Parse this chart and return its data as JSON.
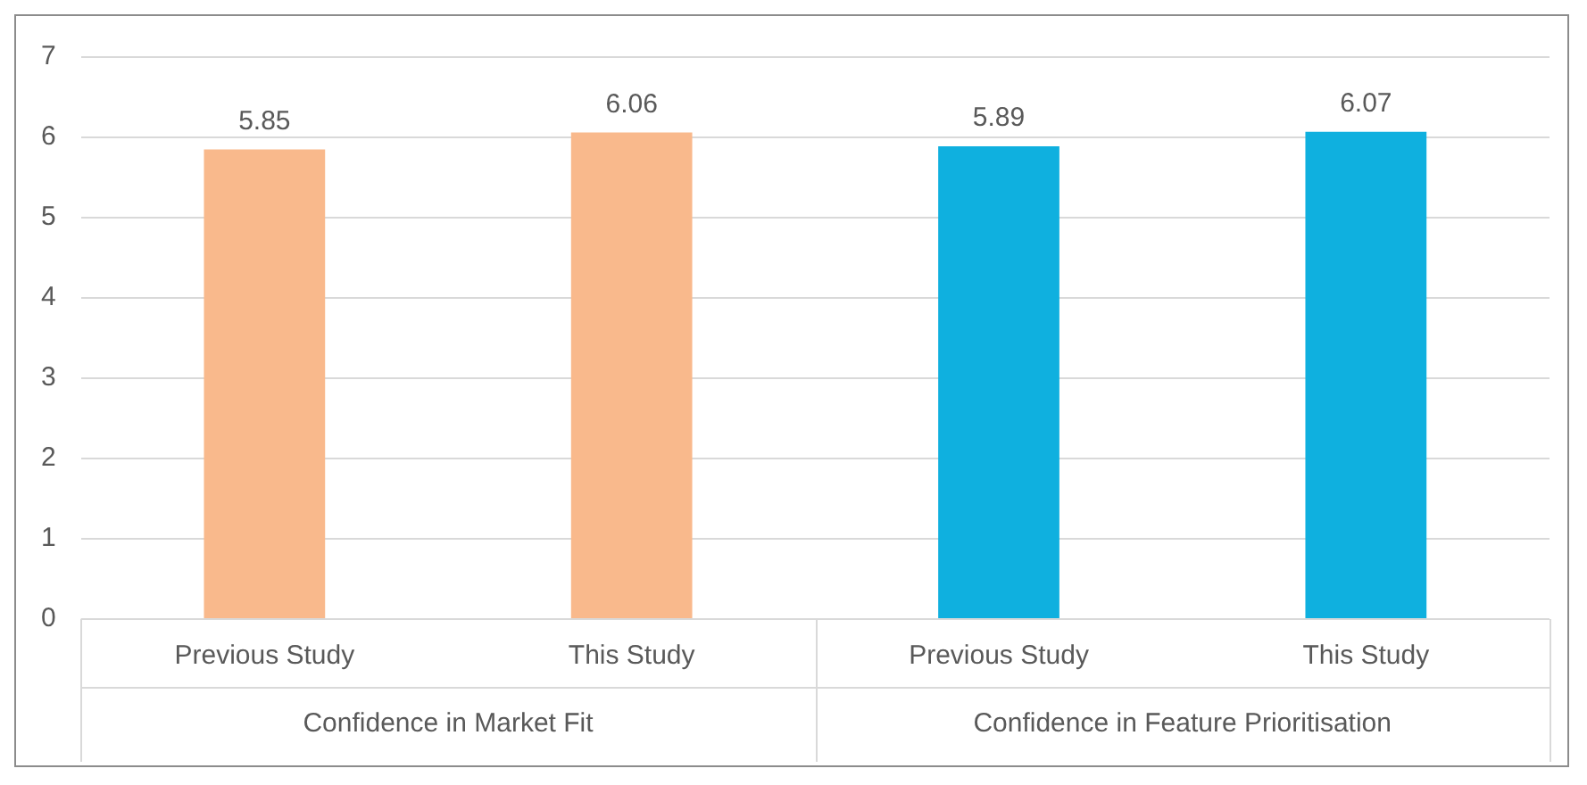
{
  "chart_data": {
    "type": "bar",
    "categories": [
      "Previous Study",
      "This Study",
      "Previous Study",
      "This Study"
    ],
    "values": [
      5.85,
      6.06,
      5.89,
      6.07
    ],
    "colors": [
      "#f9b98c",
      "#f9b98c",
      "#0fb0df",
      "#0fb0df"
    ],
    "annotations": [
      "Confidence in Market Fit",
      "Confidence in Feature Prioritisation"
    ],
    "ylim": [
      0,
      7
    ],
    "yticks": [
      0,
      1,
      2,
      3,
      4,
      5,
      6,
      7
    ],
    "grid": "y",
    "data_labels": true,
    "legend": false
  }
}
